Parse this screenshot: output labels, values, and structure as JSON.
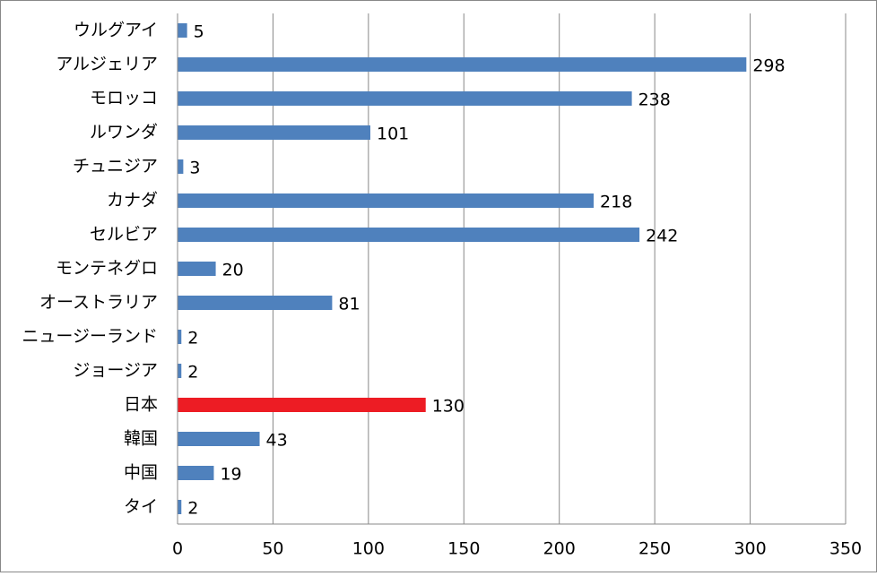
{
  "chart_data": {
    "type": "bar",
    "orientation": "horizontal",
    "categories": [
      "ウルグアイ",
      "アルジェリア",
      "モロッコ",
      "ルワンダ",
      "チュニジア",
      "カナダ",
      "セルビア",
      "モンテネグロ",
      "オーストラリア",
      "ニュージーランド",
      "ジョージア",
      "日本",
      "韓国",
      "中国",
      "タイ"
    ],
    "values": [
      5,
      298,
      238,
      101,
      3,
      218,
      242,
      20,
      81,
      2,
      2,
      130,
      43,
      19,
      2
    ],
    "colors": [
      "#4f81bd",
      "#4f81bd",
      "#4f81bd",
      "#4f81bd",
      "#4f81bd",
      "#4f81bd",
      "#4f81bd",
      "#4f81bd",
      "#4f81bd",
      "#4f81bd",
      "#4f81bd",
      "#ed1c24",
      "#4f81bd",
      "#4f81bd",
      "#4f81bd"
    ],
    "xlim": [
      0,
      350
    ],
    "xticks": [
      0,
      50,
      100,
      150,
      200,
      250,
      300,
      350
    ],
    "grid": true,
    "data_labels": true
  }
}
